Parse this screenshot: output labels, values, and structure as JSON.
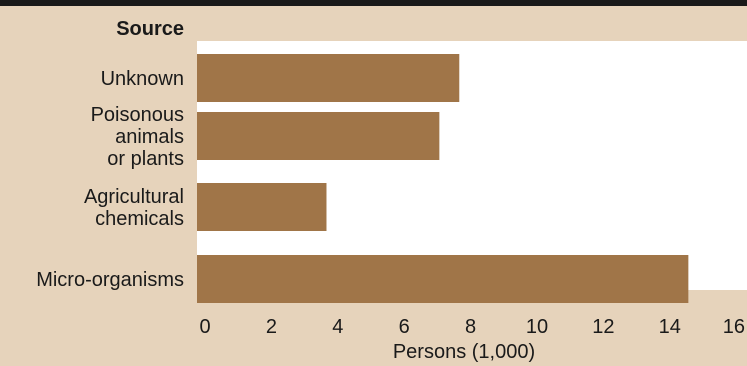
{
  "colors": {
    "panel": "#e6d3bb",
    "bar": "#a07548",
    "top_band": "#1a1a1a",
    "plot_bg": "#ffffff"
  },
  "header": {
    "column_title": "Source"
  },
  "chart_data": {
    "type": "bar",
    "orientation": "horizontal",
    "categories": [
      [
        "Unknown"
      ],
      [
        "Poisonous",
        "animals",
        "or plants"
      ],
      [
        "Agricultural",
        "chemicals"
      ],
      [
        "Micro-organisms"
      ]
    ],
    "values": [
      7.9,
      7.3,
      3.9,
      14.8
    ],
    "xlabel": "Persons (1,000)",
    "xlim": [
      0,
      16
    ],
    "xticks": [
      0,
      2,
      4,
      6,
      8,
      10,
      12,
      14,
      16
    ],
    "grid": false,
    "legend": "none"
  }
}
